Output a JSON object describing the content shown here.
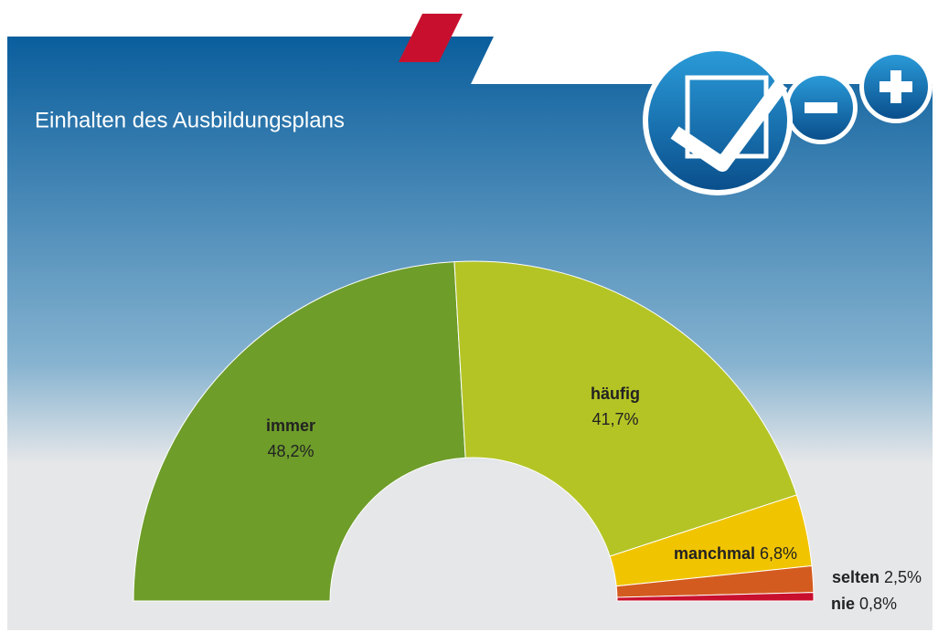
{
  "chart_data": {
    "type": "pie",
    "half": true,
    "title": "Einhalten des Ausbildungsplans",
    "categories": [
      "immer",
      "häufig",
      "manchmal",
      "selten",
      "nie"
    ],
    "values": [
      48.2,
      41.7,
      6.8,
      2.5,
      0.8
    ],
    "value_labels": [
      "48,2%",
      "41,7%",
      "6,8%",
      "2,5%",
      "0,8%"
    ],
    "colors": [
      "#6e9d2a",
      "#b4c425",
      "#f1c400",
      "#d45b1f",
      "#c8102e"
    ]
  }
}
